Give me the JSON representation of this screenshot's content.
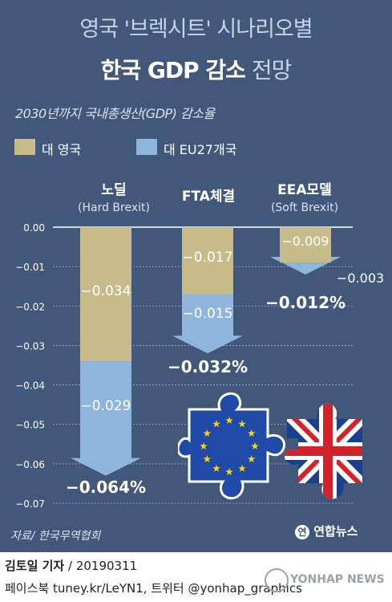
{
  "header": {
    "title_line1": "영국 '브렉시트' 시나리오별",
    "title_line2_bold": "한국 GDP 감소",
    "title_line2_light": "전망",
    "subtitle": "2030년까지 국내총생산(GDP) 감소율"
  },
  "legend": [
    {
      "label": "대 영국",
      "color": "#c8bb8a"
    },
    {
      "label": "대 EU27개국",
      "color": "#8fb5dd"
    }
  ],
  "columns": [
    {
      "title": "노딜",
      "subtitle": "(Hard Brexit)"
    },
    {
      "title": "FTA체결",
      "subtitle": ""
    },
    {
      "title": "EEA모델",
      "subtitle": "(Soft Brexit)"
    }
  ],
  "chart_data": {
    "type": "bar",
    "categories": [
      "노딜",
      "FTA체결",
      "EEA모델"
    ],
    "series": [
      {
        "name": "대 영국",
        "values": [
          -0.034,
          -0.017,
          -0.009
        ]
      },
      {
        "name": "대 EU27개국",
        "values": [
          -0.029,
          -0.015,
          -0.003
        ]
      }
    ],
    "value_labels": [
      [
        "−0.034",
        "−0.017",
        "−0.009"
      ],
      [
        "−0.029",
        "−0.015",
        "−0.003"
      ]
    ],
    "totals": [
      -0.064,
      -0.032,
      -0.012
    ],
    "total_labels": [
      "−0.064%",
      "−0.032%",
      "−0.012%"
    ],
    "yticks": [
      0,
      -0.01,
      -0.02,
      -0.03,
      -0.04,
      -0.05,
      -0.06,
      -0.07
    ],
    "ytick_labels": [
      "0.00",
      "−0.01",
      "−0.02",
      "−0.03",
      "−0.04",
      "−0.05",
      "−0.06",
      "−0.07"
    ],
    "ylim": [
      -0.07,
      0
    ],
    "stacked": true,
    "grid": true,
    "colors": {
      "uk": "#c8bb8a",
      "eu": "#8fb5dd"
    }
  },
  "source": "자료/ 한국무역협회",
  "brand": {
    "icon": "연",
    "text": "연합뉴스"
  },
  "footer": {
    "author": "김토일 기자",
    "date": " / 20190311",
    "social": "페이스북 tuney.kr/LeYN1, 트위터 @yonhap_graphics"
  },
  "watermark": {
    "text": "YONHAP NEWS"
  },
  "icons": {
    "eu": "eu-flag-puzzle-icon",
    "uk": "uk-flag-puzzle-icon"
  }
}
